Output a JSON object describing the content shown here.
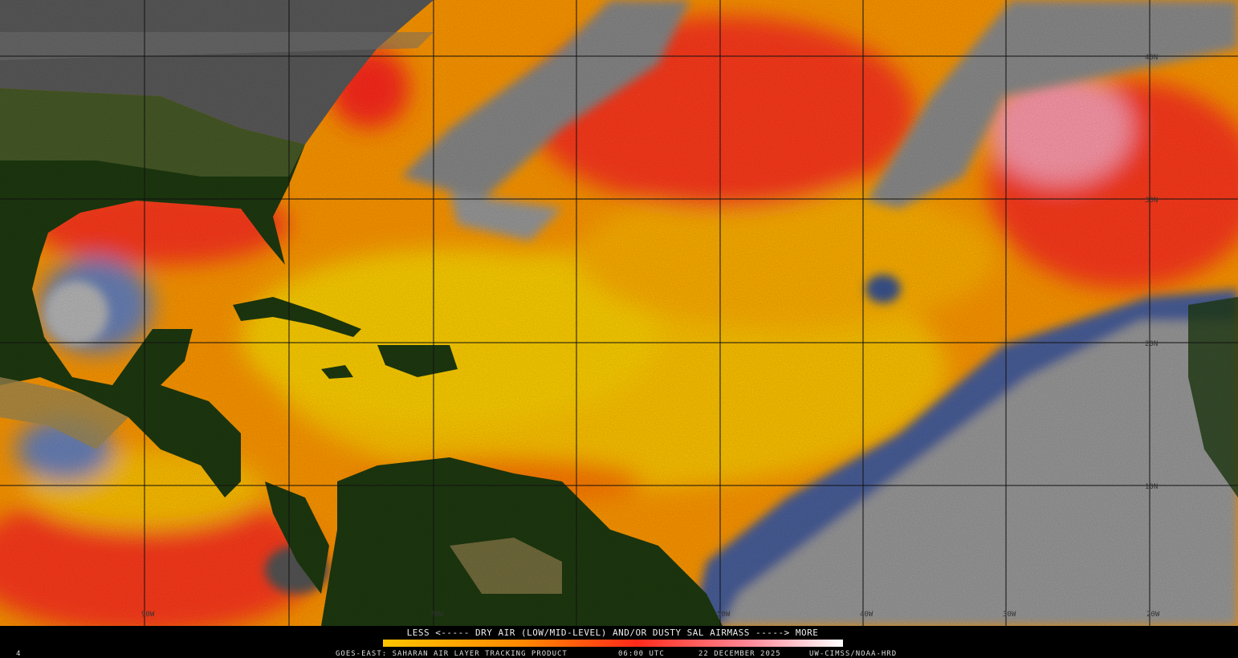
{
  "map": {
    "lat_labels": [
      "40N",
      "30N",
      "20N",
      "10N"
    ],
    "lon_labels": [
      "90W",
      "70W",
      "50W",
      "40W",
      "30W",
      "20W"
    ]
  },
  "legend": {
    "caption": "LESS <----- DRY AIR (LOW/MID-LEVEL) AND/OR DUSTY SAL AIRMASS -----> MORE"
  },
  "footer": {
    "corner": "4",
    "product": "GOES-EAST: SAHARAN AIR LAYER TRACKING PRODUCT",
    "time": "06:00 UTC",
    "date": "22 DECEMBER 2025",
    "credit": "UW-CIMSS/NOAA-HRD"
  }
}
